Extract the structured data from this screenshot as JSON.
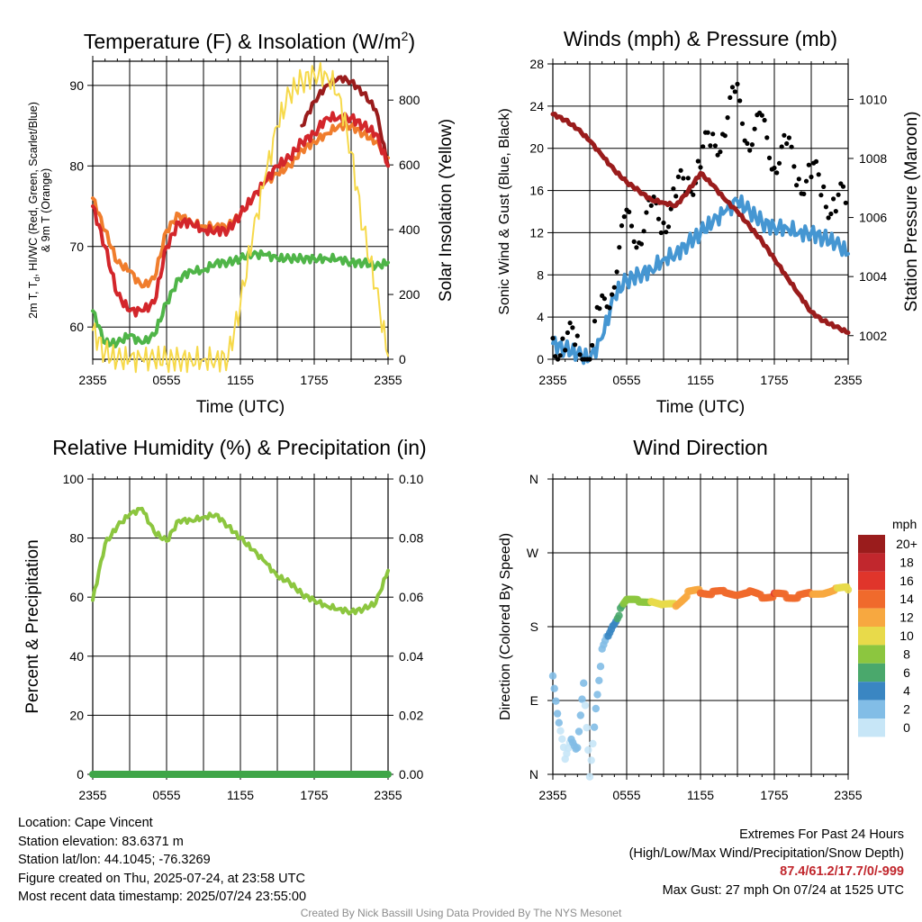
{
  "colors": {
    "temperature_red": "#d3262b",
    "dewpoint_green": "#4fb548",
    "heat_index_scarlet": "#c1272d",
    "temperature_9m_orange": "#f07d2d",
    "wind_chill_blue": "#3b75b8",
    "solar_yellow": "#f6d94a",
    "wind_speed_blue": "#4596d2",
    "gust_black": "#000000",
    "pressure_maroon": "#9a1c1c",
    "rh_green": "#8cc63f",
    "precip_green": "#3fa548",
    "extremes_red": "#c1272d"
  },
  "chart_data": [
    {
      "type": "line",
      "title": "Temperature (F) & Insolation (W/m²)",
      "title_text": "Temperature (F) & Insolation (W/m",
      "title_sup": "2",
      "title_close": ")",
      "xlabel": "Time (UTC)",
      "ylabel_lines": [
        "2m T, Tₑ, HI/WC (Red, Green, Scarlet/Blue)",
        "& 9m T (Orange)"
      ],
      "ylabel_line1_a": "2m T, T",
      "ylabel_line1_sub": "d",
      "ylabel_line1_b": ", HI/WC (Red, Green, Scarlet/Blue)",
      "ylabel_line2": "& 9m T (Orange)",
      "y2label": "Solar Insolation (Yellow)",
      "x_ticks": [
        "2355",
        "0555",
        "1155",
        "1755",
        "2355"
      ],
      "ylim": [
        56,
        93
      ],
      "y_ticks": [
        60,
        70,
        80,
        90
      ],
      "y2lim": [
        0,
        920
      ],
      "y2_ticks": [
        0,
        200,
        400,
        600,
        800
      ],
      "x_hours": [
        0,
        1,
        2,
        3,
        4,
        5,
        6,
        7,
        8,
        9,
        10,
        11,
        12,
        13,
        14,
        15,
        16,
        17,
        18,
        19,
        20,
        21,
        22,
        23,
        24
      ],
      "series": [
        {
          "name": "2m T",
          "axis": "left",
          "color": "#d3262b",
          "values": [
            75,
            70,
            64,
            62,
            62,
            63,
            70,
            73,
            73,
            72,
            72,
            72,
            74,
            76,
            78,
            80,
            81,
            83,
            84,
            86,
            86,
            86,
            85,
            84,
            80
          ]
        },
        {
          "name": "Tₑ",
          "axis": "left",
          "color": "#4fb548",
          "values": [
            62,
            58,
            58,
            59,
            58,
            59,
            63,
            66,
            67,
            67,
            68,
            68,
            68.5,
            69,
            69,
            68.5,
            68.5,
            68.5,
            68.5,
            68.5,
            68.5,
            68,
            68,
            67.5,
            68
          ]
        },
        {
          "name": "HI",
          "axis": "left",
          "color": "#9a1c1c",
          "values": [
            null,
            null,
            null,
            null,
            null,
            null,
            null,
            null,
            null,
            null,
            null,
            null,
            null,
            null,
            null,
            null,
            null,
            85,
            88,
            90,
            91,
            90.5,
            89,
            87,
            80
          ]
        },
        {
          "name": "9m T",
          "axis": "left",
          "color": "#f07d2d",
          "values": [
            76,
            72,
            68,
            67,
            65,
            66,
            72,
            74,
            73,
            72.5,
            72.5,
            72.5,
            74,
            76,
            78,
            79,
            80,
            82,
            83,
            84,
            85,
            85,
            84,
            83,
            81
          ]
        },
        {
          "name": "Solar Insolation",
          "axis": "right",
          "color": "#f6d94a",
          "values": [
            90,
            20,
            0,
            0,
            0,
            0,
            0,
            0,
            0,
            0,
            0,
            5,
            170,
            380,
            560,
            720,
            820,
            860,
            880,
            880,
            820,
            640,
            400,
            220,
            10
          ]
        }
      ]
    },
    {
      "type": "scatter",
      "title": "Winds (mph) & Pressure (mb)",
      "xlabel": "Time (UTC)",
      "ylabel": "Sonic Wind & Gust (Blue, Black)",
      "y2label": "Station Pressure (Maroon)",
      "x_ticks": [
        "2355",
        "0555",
        "1155",
        "1755",
        "2355"
      ],
      "ylim": [
        0,
        28
      ],
      "y_ticks": [
        0,
        4,
        8,
        12,
        16,
        20,
        24,
        28
      ],
      "y2lim": [
        1001.2,
        1011.2
      ],
      "y2_ticks": [
        1002,
        1004,
        1006,
        1008,
        1010
      ],
      "x_hours": [
        0,
        1,
        2,
        3,
        4,
        5,
        6,
        7,
        8,
        9,
        10,
        11,
        12,
        13,
        14,
        15,
        16,
        17,
        18,
        19,
        20,
        21,
        22,
        23,
        24
      ],
      "series": [
        {
          "name": "Sonic Wind",
          "axis": "left",
          "color": "#4596d2",
          "values": [
            1.5,
            1,
            0.5,
            0,
            2,
            6,
            7.5,
            8,
            8.5,
            9.5,
            10,
            11,
            12,
            13,
            14,
            15,
            14,
            13,
            12.5,
            12.5,
            12,
            12,
            11.5,
            11,
            10
          ]
        },
        {
          "name": "Gust",
          "axis": "left",
          "color": "#000000",
          "values": [
            2,
            1.5,
            1,
            0.8,
            4,
            9,
            12,
            13,
            13,
            14,
            15,
            17,
            19,
            20,
            23,
            24,
            22,
            21,
            20,
            19,
            18,
            17,
            16,
            15,
            14
          ]
        },
        {
          "name": "Station Pressure",
          "axis": "right",
          "color": "#9a1c1c",
          "values": [
            1009.5,
            1009.3,
            1009.0,
            1008.6,
            1008.1,
            1007.6,
            1007.2,
            1006.9,
            1006.6,
            1006.5,
            1006.4,
            1006.9,
            1007.5,
            1007.1,
            1006.6,
            1006.2,
            1005.7,
            1005.2,
            1004.6,
            1004.0,
            1003.4,
            1002.8,
            1002.5,
            1002.3,
            1002.1
          ]
        }
      ]
    },
    {
      "type": "line",
      "title": "Relative Humidity (%) & Precipitation (in)",
      "ylabel": "Percent & Precipitation",
      "x_ticks": [
        "2355",
        "0555",
        "1155",
        "1755",
        "2355"
      ],
      "ylim": [
        0,
        100
      ],
      "y_ticks": [
        0,
        20,
        40,
        60,
        80,
        100
      ],
      "y2lim": [
        0,
        0.1
      ],
      "y2_ticks": [
        "0.00",
        "0.02",
        "0.04",
        "0.06",
        "0.08",
        "0.10"
      ],
      "x_hours": [
        0,
        1,
        2,
        3,
        4,
        5,
        6,
        7,
        8,
        9,
        10,
        11,
        12,
        13,
        14,
        15,
        16,
        17,
        18,
        19,
        20,
        21,
        22,
        23,
        24
      ],
      "series": [
        {
          "name": "Relative Humidity",
          "axis": "left",
          "color": "#8cc63f",
          "values": [
            59,
            78,
            84,
            88,
            90,
            82,
            79,
            86,
            86,
            87,
            88,
            84,
            80,
            76,
            72,
            67,
            65,
            61,
            59,
            57,
            56,
            55,
            56,
            58,
            69
          ]
        },
        {
          "name": "Precipitation",
          "axis": "right",
          "color": "#3fa548",
          "values": [
            0,
            0,
            0,
            0,
            0,
            0,
            0,
            0,
            0,
            0,
            0,
            0,
            0,
            0,
            0,
            0,
            0,
            0,
            0,
            0,
            0,
            0,
            0,
            0,
            0
          ]
        }
      ]
    },
    {
      "type": "scatter",
      "title": "Wind Direction",
      "ylabel": "Direction (Colored By Speed)",
      "x_ticks": [
        "2355",
        "0555",
        "1155",
        "1755",
        "2355"
      ],
      "y_ticks": [
        "N",
        "E",
        "S",
        "W",
        "N"
      ],
      "ylim": [
        0,
        360
      ],
      "legend_title": "mph",
      "legend_labels": [
        "20+",
        "18",
        "16",
        "14",
        "12",
        "10",
        "8",
        "6",
        "4",
        "2",
        "0"
      ],
      "legend_colors": [
        "#9a1c1c",
        "#c1272d",
        "#e0352b",
        "#f06a2c",
        "#f7a840",
        "#e8da4a",
        "#8cc63f",
        "#4aa86c",
        "#3a86c2",
        "#82bde6",
        "#c7e6f7"
      ],
      "x_hours": [
        0,
        0.5,
        1,
        1.5,
        2,
        2.5,
        3,
        3.5,
        4,
        4.5,
        5,
        5.5,
        6,
        7,
        8,
        9,
        10,
        11,
        12,
        13,
        14,
        15,
        16,
        17,
        18,
        19,
        20,
        21,
        22,
        23,
        24
      ],
      "direction_deg": [
        120,
        60,
        20,
        45,
        30,
        110,
        0,
        80,
        150,
        170,
        185,
        200,
        212,
        210,
        212,
        205,
        208,
        220,
        223,
        222,
        221,
        220,
        221,
        218,
        218,
        217,
        218,
        219,
        222,
        224,
        228
      ],
      "speed_mph": [
        1,
        1,
        0.5,
        1,
        1.5,
        1,
        0,
        1.5,
        2,
        3,
        4,
        6,
        8,
        8,
        9,
        10,
        11,
        12,
        13,
        13,
        14,
        14,
        14,
        14,
        15,
        14,
        14,
        13,
        12,
        11,
        10
      ]
    }
  ],
  "location": "Location: Cape Vincent",
  "elevation": "Station elevation: 83.6371 m",
  "latlon": "Station lat/lon: 44.1045; -76.3269",
  "created": "Figure created on Thu, 2025-07-24, at 23:58 UTC",
  "recent": "Most recent data timestamp: 2025/07/24 23:55:00",
  "extremes_title": "Extremes For Past 24 Hours",
  "extremes_subtitle": "(High/Low/Max Wind/Precipitation/Snow Depth)",
  "extremes_values": "87.4/61.2/17.7/0/-999",
  "max_gust": "Max Gust: 27 mph On 07/24 at 1525 UTC",
  "credit": "Created By Nick Bassill Using Data Provided By The NYS Mesonet"
}
